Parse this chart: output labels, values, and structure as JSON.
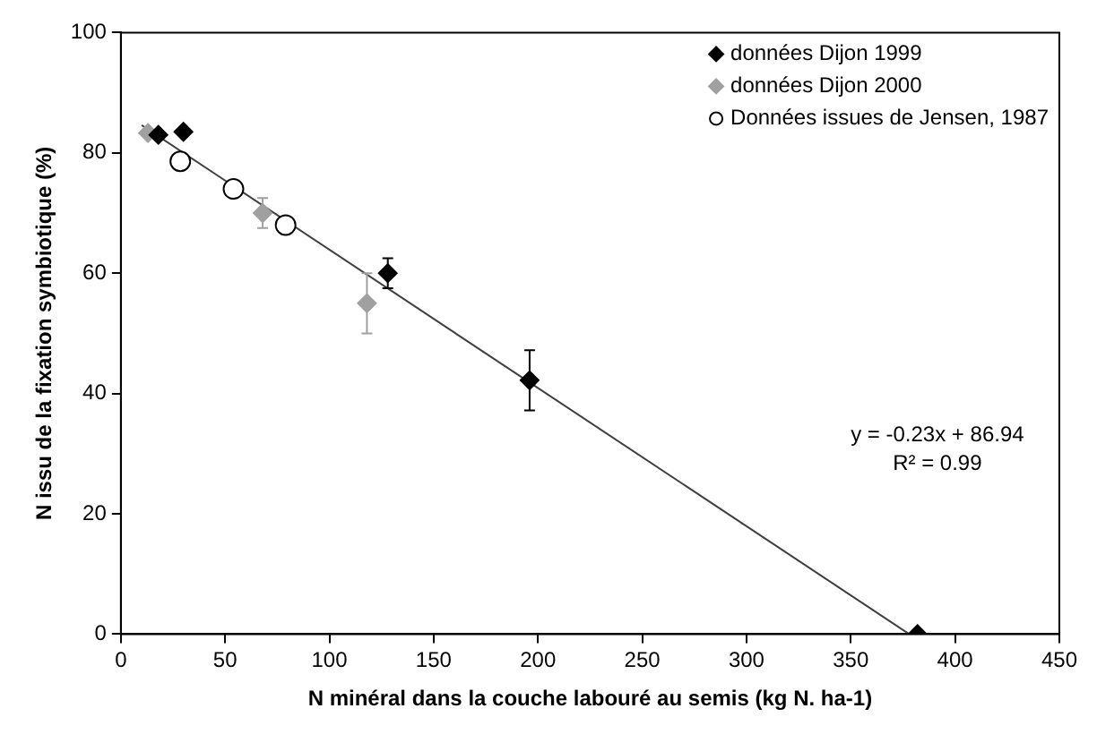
{
  "chart_data": {
    "type": "scatter",
    "xlabel": "N minéral dans la couche labouré au semis (kg N. ha-1)",
    "ylabel": "N issu de la fixation symbiotique (%)",
    "xlim": [
      0,
      450
    ],
    "xticks": [
      0,
      50,
      100,
      150,
      200,
      250,
      300,
      350,
      400,
      450
    ],
    "ylim": [
      0,
      100
    ],
    "yticks": [
      0,
      20,
      40,
      60,
      80,
      100
    ],
    "grid": false,
    "legend": "top right",
    "annotations": [
      "y = -0.23x + 86.94",
      "R² = 0.99"
    ],
    "series": [
      {
        "name": "données Dijon 1999",
        "color": "#000000",
        "marker": "diamond",
        "x": [
          18,
          30,
          128,
          196,
          382
        ],
        "values": [
          83,
          83.5,
          60,
          42.2,
          0
        ],
        "errors": [
          null,
          null,
          2.5,
          5,
          null
        ]
      },
      {
        "name": "données Dijon 2000",
        "color": "#a0a0a0",
        "marker": "diamond",
        "x": [
          13,
          68,
          118
        ],
        "values": [
          83.3,
          70,
          55
        ],
        "errors": [
          null,
          2.5,
          5
        ]
      },
      {
        "name": "Données issues de Jensen, 1987",
        "color": "#000000",
        "marker": "circle",
        "x": [
          28.5,
          54,
          79
        ],
        "values": [
          78.6,
          74,
          68
        ]
      },
      {
        "type": "line",
        "color": "#404040",
        "marker": "none",
        "x": [
          10,
          378
        ],
        "values": [
          84.6,
          0
        ]
      }
    ]
  }
}
